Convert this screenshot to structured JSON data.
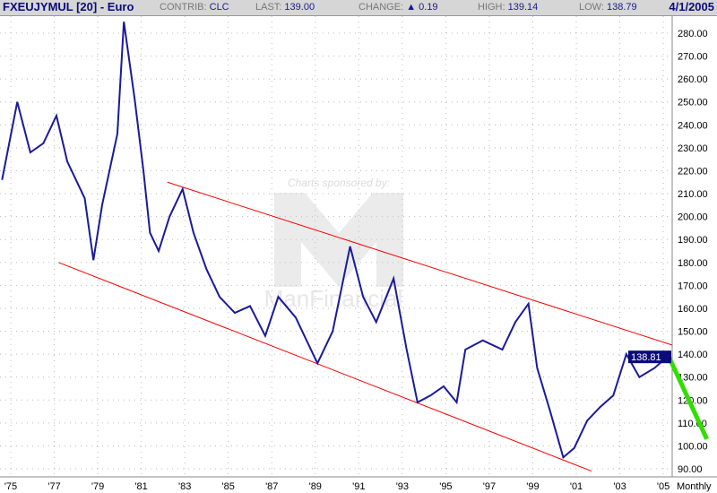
{
  "header": {
    "symbol": "FXEUJYMUL [20] - Euro",
    "contrib_label": "CONTRIB:",
    "contrib": "CLC",
    "last_label": "LAST:",
    "last": "139.00",
    "change_label": "CHANGE:",
    "change_icon": "up-triangle-icon",
    "change": "0.19",
    "high_label": "HIGH:",
    "high": "139.14",
    "low_label": "LOW:",
    "low": "138.79",
    "date": "4/1/2005"
  },
  "watermark": {
    "sponsor_text": "Charts sponsored by:",
    "brand": "ManFinancial"
  },
  "chart_data": {
    "type": "line",
    "title": "",
    "period": "Monthly",
    "ylim": [
      85,
      287
    ],
    "xlim": [
      1974.6,
      2005.5
    ],
    "y_ticks": [
      "90.00",
      "100.00",
      "110.00",
      "120.00",
      "130.00",
      "140.00",
      "150.00",
      "160.00",
      "170.00",
      "180.00",
      "190.00",
      "200.00",
      "210.00",
      "220.00",
      "230.00",
      "240.00",
      "250.00",
      "260.00",
      "270.00",
      "280.00"
    ],
    "x_ticks": [
      {
        "x": 1975,
        "label": "'75"
      },
      {
        "x": 1977,
        "label": "'77"
      },
      {
        "x": 1979,
        "label": "'79"
      },
      {
        "x": 1981,
        "label": "'81"
      },
      {
        "x": 1983,
        "label": "'83"
      },
      {
        "x": 1985,
        "label": "'85"
      },
      {
        "x": 1987,
        "label": "'87"
      },
      {
        "x": 1989,
        "label": "'89"
      },
      {
        "x": 1991,
        "label": "'91"
      },
      {
        "x": 1993,
        "label": "'93"
      },
      {
        "x": 1995,
        "label": "'95"
      },
      {
        "x": 1997,
        "label": "'97"
      },
      {
        "x": 1999,
        "label": "'99"
      },
      {
        "x": 2001,
        "label": "'01"
      },
      {
        "x": 2003,
        "label": "'03"
      },
      {
        "x": 2005,
        "label": "'05"
      }
    ],
    "grid": true,
    "last_value_label": "138.81",
    "series": [
      {
        "color": "#1a1a9c",
        "points": [
          [
            1974.6,
            216
          ],
          [
            1975.3,
            250
          ],
          [
            1975.9,
            228
          ],
          [
            1976.5,
            232
          ],
          [
            1977.1,
            244
          ],
          [
            1977.6,
            224
          ],
          [
            1978.4,
            208
          ],
          [
            1978.8,
            181
          ],
          [
            1979.2,
            205
          ],
          [
            1979.9,
            236
          ],
          [
            1980.2,
            285
          ],
          [
            1980.7,
            251
          ],
          [
            1981.1,
            220
          ],
          [
            1981.4,
            193
          ],
          [
            1981.8,
            185
          ],
          [
            1982.3,
            200
          ],
          [
            1982.9,
            212
          ],
          [
            1983.4,
            193
          ],
          [
            1984.0,
            177
          ],
          [
            1984.6,
            165
          ],
          [
            1985.3,
            158
          ],
          [
            1986.0,
            161
          ],
          [
            1986.7,
            148
          ],
          [
            1987.3,
            165
          ],
          [
            1988.1,
            156
          ],
          [
            1989.1,
            136
          ],
          [
            1989.8,
            150
          ],
          [
            1990.6,
            187
          ],
          [
            1991.2,
            165
          ],
          [
            1991.8,
            154
          ],
          [
            1992.6,
            173
          ],
          [
            1993.2,
            142
          ],
          [
            1993.7,
            119
          ],
          [
            1994.3,
            122
          ],
          [
            1994.9,
            126
          ],
          [
            1995.5,
            119
          ],
          [
            1995.9,
            142
          ],
          [
            1996.7,
            146
          ],
          [
            1997.6,
            142
          ],
          [
            1998.2,
            154
          ],
          [
            1998.8,
            162
          ],
          [
            1999.2,
            134
          ],
          [
            1999.8,
            115
          ],
          [
            2000.4,
            95
          ],
          [
            2000.9,
            99
          ],
          [
            2001.5,
            111
          ],
          [
            2002.1,
            117
          ],
          [
            2002.7,
            122
          ],
          [
            2003.3,
            140
          ],
          [
            2003.9,
            130
          ],
          [
            2004.6,
            134
          ],
          [
            2005.2,
            139
          ]
        ]
      }
    ],
    "annotations": [
      {
        "type": "trendline",
        "color": "#ff0000",
        "from": [
          1982.2,
          215
        ],
        "to": [
          2005.4,
          144
        ]
      },
      {
        "type": "trendline",
        "color": "#ff0000",
        "from": [
          1977.2,
          180
        ],
        "to": [
          2001.7,
          89
        ]
      },
      {
        "type": "projection",
        "color": "#33dd00",
        "from": [
          2005.2,
          140
        ],
        "to": [
          2007.0,
          103
        ]
      }
    ]
  }
}
